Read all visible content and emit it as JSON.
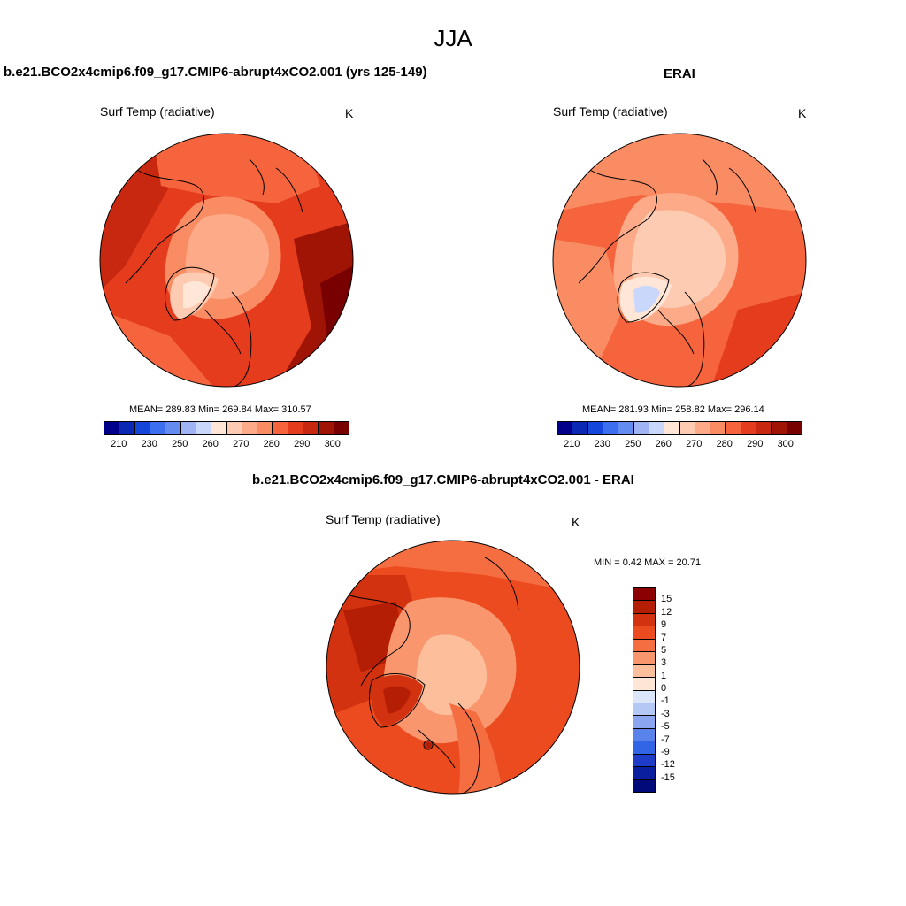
{
  "title": "JJA",
  "panels": [
    {
      "title": "b.e21.BCO2x4cmip6.f09_g17.CMIP6-abrupt4xCO2.001 (yrs 125-149)",
      "variable": "Surf Temp (radiative)",
      "units": "K",
      "stats": "MEAN= 289.83  Min= 269.84  Max= 310.57",
      "ticks": [
        "210",
        "230",
        "250",
        "260",
        "270",
        "280",
        "290",
        "300"
      ]
    },
    {
      "title": "ERAI",
      "variable": "Surf Temp (radiative)",
      "units": "K",
      "stats": "MEAN= 281.93  Min= 258.82  Max= 296.14",
      "ticks": [
        "210",
        "230",
        "250",
        "260",
        "270",
        "280",
        "290",
        "300"
      ]
    },
    {
      "title": "b.e21.BCO2x4cmip6.f09_g17.CMIP6-abrupt4xCO2.001 - ERAI",
      "variable": "Surf Temp (radiative)",
      "units": "K",
      "stats": "MIN =   0.42 MAX =  20.71",
      "ticks": [
        "15",
        "12",
        "9",
        "7",
        "5",
        "3",
        "1",
        "0",
        "-1",
        "-3",
        "-5",
        "-7",
        "-9",
        "-12",
        "-15"
      ]
    }
  ],
  "colors": {
    "abs_scale": [
      "#00008b",
      "#0a28b4",
      "#1446dc",
      "#3c6ef0",
      "#648cf0",
      "#a0b4f5",
      "#c8d7fa",
      "#ffe6d7",
      "#fccbb2",
      "#fcaa87",
      "#fa8c64",
      "#f5643c",
      "#e63c1e",
      "#c8280f",
      "#a01405",
      "#780000"
    ],
    "diff_scale": [
      "#8b0000",
      "#b41e05",
      "#d2320f",
      "#eb4b1e",
      "#f56e41",
      "#fa966e",
      "#fcbe9b",
      "#fee6d7",
      "#dce6fa",
      "#b4c8f5",
      "#8ca5f0",
      "#5a82eb",
      "#3264e6",
      "#1e3cc8",
      "#0a1ea0",
      "#000a78"
    ]
  }
}
